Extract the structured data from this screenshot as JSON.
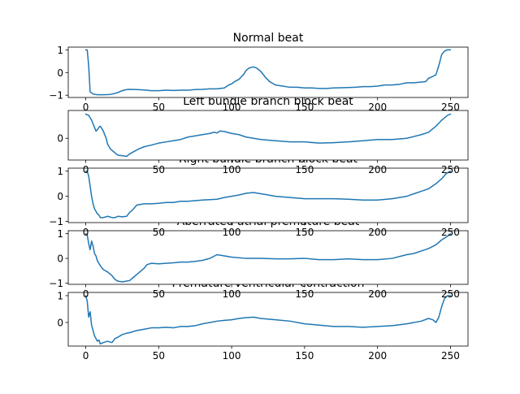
{
  "chart_data": [
    {
      "type": "line",
      "title": "Normal beat",
      "xlim": [
        -12,
        262
      ],
      "ylim": [
        -1.1,
        1.12
      ],
      "xticks": [
        0,
        50,
        100,
        150,
        200,
        250
      ],
      "yticks": [
        -1,
        0,
        1
      ],
      "show_xticklabels": true,
      "series": [
        {
          "color": "#1f77b4",
          "x": [
            0,
            1,
            2,
            3,
            5,
            8,
            12,
            16,
            18,
            20,
            22,
            25,
            28,
            30,
            35,
            40,
            45,
            50,
            55,
            60,
            65,
            70,
            75,
            80,
            85,
            90,
            95,
            98,
            100,
            102,
            105,
            108,
            110,
            112,
            115,
            117,
            120,
            123,
            126,
            130,
            135,
            140,
            145,
            150,
            155,
            160,
            165,
            170,
            175,
            180,
            185,
            190,
            195,
            200,
            205,
            210,
            215,
            220,
            225,
            230,
            233,
            235,
            237,
            240,
            242,
            244,
            246,
            248,
            250
          ],
          "y": [
            1.0,
            1.0,
            0.3,
            -0.85,
            -0.95,
            -0.98,
            -0.98,
            -0.97,
            -0.95,
            -0.92,
            -0.88,
            -0.8,
            -0.75,
            -0.74,
            -0.75,
            -0.77,
            -0.8,
            -0.8,
            -0.78,
            -0.79,
            -0.78,
            -0.78,
            -0.75,
            -0.74,
            -0.72,
            -0.72,
            -0.68,
            -0.55,
            -0.5,
            -0.4,
            -0.3,
            -0.1,
            0.1,
            0.2,
            0.25,
            0.2,
            0.05,
            -0.2,
            -0.4,
            -0.55,
            -0.6,
            -0.65,
            -0.65,
            -0.68,
            -0.68,
            -0.7,
            -0.7,
            -0.68,
            -0.67,
            -0.66,
            -0.65,
            -0.62,
            -0.62,
            -0.6,
            -0.55,
            -0.55,
            -0.52,
            -0.45,
            -0.45,
            -0.42,
            -0.4,
            -0.25,
            -0.2,
            -0.1,
            0.3,
            0.8,
            0.95,
            1.0,
            1.0
          ]
        }
      ]
    },
    {
      "type": "line",
      "title": "Left bundle branch block beat",
      "xlim": [
        -12,
        262
      ],
      "ylim": [
        -0.9,
        1.15
      ],
      "xticks": [
        0,
        50,
        100,
        150,
        200,
        250
      ],
      "yticks": [
        0
      ],
      "show_xticklabels": false,
      "series": [
        {
          "color": "#1f77b4",
          "x": [
            0,
            2,
            4,
            6,
            7,
            8,
            9,
            10,
            12,
            14,
            15,
            17,
            20,
            22,
            25,
            28,
            30,
            33,
            36,
            40,
            45,
            50,
            55,
            60,
            65,
            70,
            75,
            80,
            85,
            88,
            90,
            92,
            95,
            100,
            105,
            110,
            120,
            130,
            140,
            150,
            160,
            170,
            180,
            190,
            200,
            210,
            220,
            230,
            235,
            240,
            244,
            248,
            250
          ],
          "y": [
            1.0,
            0.95,
            0.75,
            0.45,
            0.3,
            0.35,
            0.45,
            0.5,
            0.3,
            0.0,
            -0.25,
            -0.45,
            -0.6,
            -0.7,
            -0.72,
            -0.75,
            -0.65,
            -0.55,
            -0.45,
            -0.35,
            -0.28,
            -0.2,
            -0.15,
            -0.1,
            -0.05,
            0.05,
            0.1,
            0.15,
            0.2,
            0.25,
            0.22,
            0.3,
            0.28,
            0.2,
            0.15,
            0.05,
            -0.05,
            -0.1,
            -0.15,
            -0.15,
            -0.2,
            -0.18,
            -0.15,
            -0.1,
            -0.05,
            -0.05,
            0.0,
            0.15,
            0.25,
            0.5,
            0.75,
            0.95,
            1.0
          ]
        }
      ]
    },
    {
      "type": "line",
      "title": "Right bundle branch block beat",
      "xlim": [
        -12,
        262
      ],
      "ylim": [
        -1.05,
        1.12
      ],
      "xticks": [
        0,
        50,
        100,
        150,
        200,
        250
      ],
      "yticks": [
        -1,
        0,
        1
      ],
      "show_xticklabels": false,
      "series": [
        {
          "color": "#1f77b4",
          "x": [
            0,
            1,
            2,
            3,
            4,
            5,
            6,
            7,
            8,
            9,
            10,
            12,
            15,
            18,
            20,
            22,
            25,
            28,
            30,
            32,
            35,
            40,
            45,
            50,
            55,
            60,
            65,
            70,
            80,
            90,
            95,
            100,
            105,
            110,
            115,
            120,
            125,
            130,
            140,
            150,
            160,
            170,
            180,
            190,
            200,
            210,
            215,
            220,
            225,
            230,
            235,
            240,
            244,
            247,
            250
          ],
          "y": [
            1.0,
            1.0,
            0.8,
            0.4,
            0.0,
            -0.3,
            -0.5,
            -0.6,
            -0.7,
            -0.75,
            -0.85,
            -0.85,
            -0.8,
            -0.85,
            -0.85,
            -0.8,
            -0.82,
            -0.8,
            -0.65,
            -0.55,
            -0.35,
            -0.3,
            -0.3,
            -0.28,
            -0.25,
            -0.25,
            -0.2,
            -0.2,
            -0.15,
            -0.12,
            -0.05,
            0.0,
            0.05,
            0.12,
            0.15,
            0.1,
            0.05,
            0.0,
            -0.05,
            -0.1,
            -0.1,
            -0.1,
            -0.12,
            -0.15,
            -0.15,
            -0.1,
            -0.05,
            0.0,
            0.1,
            0.2,
            0.3,
            0.5,
            0.7,
            0.9,
            1.0
          ]
        }
      ]
    },
    {
      "type": "line",
      "title": "Aberrated atrial premature beat",
      "xlim": [
        -12,
        262
      ],
      "ylim": [
        -1.05,
        1.12
      ],
      "xticks": [
        0,
        50,
        100,
        150,
        200,
        250
      ],
      "yticks": [
        -1,
        0,
        1
      ],
      "show_xticklabels": false,
      "series": [
        {
          "color": "#1f77b4",
          "x": [
            0,
            1,
            2,
            3,
            4,
            5,
            6,
            7,
            8,
            10,
            12,
            15,
            18,
            20,
            22,
            25,
            28,
            30,
            33,
            36,
            40,
            42,
            45,
            50,
            55,
            60,
            65,
            70,
            75,
            80,
            85,
            90,
            95,
            100,
            110,
            120,
            130,
            140,
            150,
            160,
            170,
            180,
            190,
            200,
            210,
            220,
            225,
            230,
            235,
            240,
            244,
            248,
            250
          ],
          "y": [
            1.0,
            0.95,
            0.6,
            0.35,
            0.7,
            0.5,
            0.2,
            0.1,
            -0.1,
            -0.3,
            -0.45,
            -0.55,
            -0.7,
            -0.85,
            -0.92,
            -0.95,
            -0.92,
            -0.9,
            -0.75,
            -0.6,
            -0.4,
            -0.25,
            -0.2,
            -0.22,
            -0.2,
            -0.18,
            -0.15,
            -0.15,
            -0.12,
            -0.08,
            0.0,
            0.15,
            0.1,
            0.05,
            0.0,
            0.0,
            -0.02,
            -0.02,
            0.0,
            -0.05,
            -0.05,
            -0.02,
            -0.05,
            -0.05,
            0.0,
            0.15,
            0.2,
            0.3,
            0.4,
            0.55,
            0.75,
            0.9,
            1.0
          ]
        }
      ]
    },
    {
      "type": "line",
      "title": "Premature ventricular contraction",
      "xlim": [
        -12,
        262
      ],
      "ylim": [
        -0.88,
        1.12
      ],
      "xticks": [
        0,
        50,
        100,
        150,
        200,
        250
      ],
      "yticks": [
        0,
        1
      ],
      "show_xticklabels": true,
      "series": [
        {
          "color": "#1f77b4",
          "x": [
            0,
            1,
            2,
            3,
            4,
            5,
            6,
            7,
            8,
            9,
            10,
            12,
            15,
            18,
            20,
            22,
            25,
            28,
            30,
            35,
            40,
            45,
            50,
            55,
            60,
            65,
            70,
            75,
            80,
            85,
            90,
            95,
            100,
            105,
            110,
            115,
            120,
            130,
            140,
            150,
            160,
            170,
            180,
            190,
            200,
            210,
            220,
            230,
            235,
            238,
            240,
            242,
            244,
            246,
            248,
            250
          ],
          "y": [
            1.0,
            0.8,
            0.2,
            0.4,
            -0.1,
            -0.3,
            -0.5,
            -0.6,
            -0.7,
            -0.65,
            -0.8,
            -0.75,
            -0.7,
            -0.75,
            -0.6,
            -0.55,
            -0.45,
            -0.4,
            -0.38,
            -0.3,
            -0.25,
            -0.2,
            -0.2,
            -0.18,
            -0.2,
            -0.15,
            -0.15,
            -0.12,
            -0.05,
            0.0,
            0.05,
            0.08,
            0.1,
            0.15,
            0.18,
            0.2,
            0.15,
            0.1,
            0.05,
            -0.05,
            -0.1,
            -0.15,
            -0.15,
            -0.18,
            -0.15,
            -0.12,
            -0.05,
            0.05,
            0.15,
            0.1,
            0.0,
            0.2,
            0.6,
            0.9,
            1.0,
            1.0
          ]
        }
      ]
    }
  ]
}
